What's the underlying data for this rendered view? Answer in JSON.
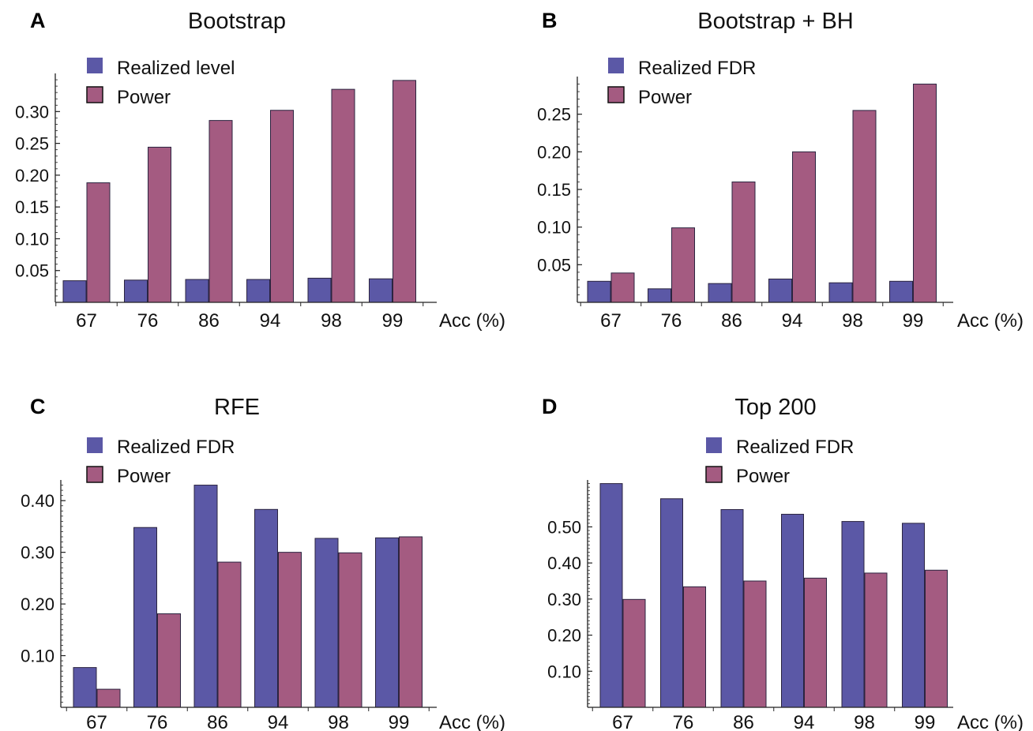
{
  "colors": {
    "series1": "#5b58a6",
    "series2": "#a45b81",
    "border": "#2b2440",
    "axis": "#222222"
  },
  "chart_data": [
    {
      "panel": "A",
      "type": "bar",
      "title": "Bootstrap",
      "xlabel": "Acc (%)",
      "ylabel": "",
      "categories": [
        "67",
        "76",
        "86",
        "94",
        "98",
        "99"
      ],
      "series": [
        {
          "name": "Realized level",
          "values": [
            0.034,
            0.035,
            0.036,
            0.036,
            0.038,
            0.037
          ]
        },
        {
          "name": "Power",
          "values": [
            0.188,
            0.244,
            0.286,
            0.302,
            0.335,
            0.349
          ]
        }
      ],
      "yticks": [
        "0.05",
        "0.10",
        "0.15",
        "0.20",
        "0.25",
        "0.30"
      ],
      "ylim": [
        0,
        0.36
      ],
      "legend": "top-left",
      "grid": false
    },
    {
      "panel": "B",
      "type": "bar",
      "title": "Bootstrap + BH",
      "xlabel": "Acc (%)",
      "ylabel": "",
      "categories": [
        "67",
        "76",
        "86",
        "94",
        "98",
        "99"
      ],
      "series": [
        {
          "name": "Realized FDR",
          "values": [
            0.028,
            0.018,
            0.025,
            0.031,
            0.026,
            0.028
          ]
        },
        {
          "name": "Power",
          "values": [
            0.039,
            0.099,
            0.16,
            0.2,
            0.255,
            0.29
          ]
        }
      ],
      "yticks": [
        "0.05",
        "0.10",
        "0.15",
        "0.20",
        "0.25"
      ],
      "ylim": [
        0,
        0.3
      ],
      "legend": "top-left",
      "grid": false
    },
    {
      "panel": "C",
      "type": "bar",
      "title": "RFE",
      "xlabel": "Acc (%)",
      "ylabel": "",
      "categories": [
        "67",
        "76",
        "86",
        "94",
        "98",
        "99"
      ],
      "series": [
        {
          "name": "Realized FDR",
          "values": [
            0.077,
            0.348,
            0.43,
            0.383,
            0.327,
            0.328
          ]
        },
        {
          "name": "Power",
          "values": [
            0.035,
            0.181,
            0.281,
            0.3,
            0.299,
            0.33
          ]
        }
      ],
      "yticks": [
        "0.10",
        "0.20",
        "0.30",
        "0.40"
      ],
      "ylim": [
        0,
        0.44
      ],
      "legend": "top-left",
      "grid": false
    },
    {
      "panel": "D",
      "type": "bar",
      "title": "Top 200",
      "xlabel": "Acc (%)",
      "ylabel": "",
      "categories": [
        "67",
        "76",
        "86",
        "94",
        "98",
        "99"
      ],
      "series": [
        {
          "name": "Realized FDR",
          "values": [
            0.62,
            0.578,
            0.548,
            0.535,
            0.515,
            0.51
          ]
        },
        {
          "name": "Power",
          "values": [
            0.299,
            0.334,
            0.35,
            0.358,
            0.372,
            0.38
          ]
        }
      ],
      "yticks": [
        "0.10",
        "0.20",
        "0.30",
        "0.40",
        "0.50"
      ],
      "ylim": [
        0,
        0.63
      ],
      "legend": "top-center",
      "grid": false
    }
  ]
}
